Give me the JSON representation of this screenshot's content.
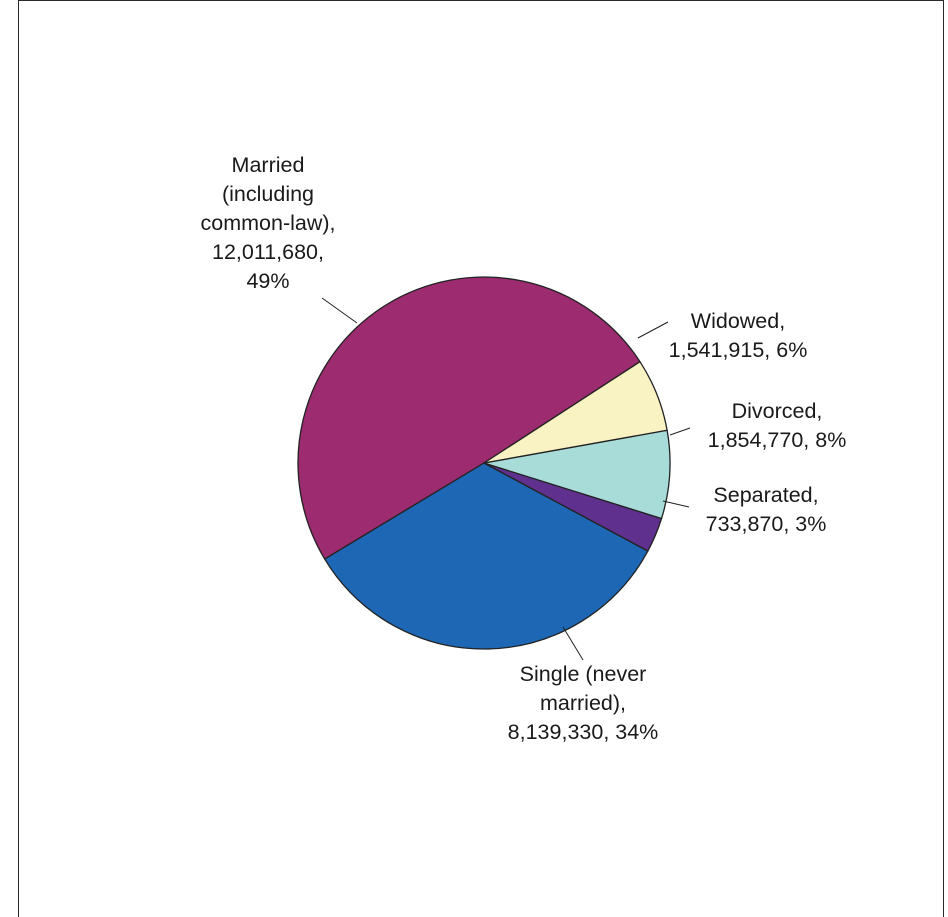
{
  "chart_data": {
    "type": "pie",
    "title": "",
    "start_angle_deg": 33,
    "direction": "counterclockwise",
    "slices": [
      {
        "name": "Married (including common-law)",
        "value": 12011680,
        "percent": 49,
        "color": "#9c2b70",
        "label_lines": [
          "Married",
          "(including",
          "common-law),",
          "12,011,680,",
          "49%"
        ]
      },
      {
        "name": "Single (never married)",
        "value": 8139330,
        "percent": 34,
        "color": "#1e67b4",
        "label_lines": [
          "Single (never",
          "married),",
          "8,139,330, 34%"
        ]
      },
      {
        "name": "Separated",
        "value": 733870,
        "percent": 3,
        "color": "#60308f",
        "label_lines": [
          "Separated,",
          "733,870, 3%"
        ]
      },
      {
        "name": "Divorced",
        "value": 1854770,
        "percent": 8,
        "color": "#a8dcd9",
        "label_lines": [
          "Divorced,",
          "1,854,770, 8%"
        ]
      },
      {
        "name": "Widowed",
        "value": 1541915,
        "percent": 6,
        "color": "#f9f2c2",
        "label_lines": [
          "Widowed,",
          "1,541,915, 6%"
        ]
      }
    ]
  }
}
